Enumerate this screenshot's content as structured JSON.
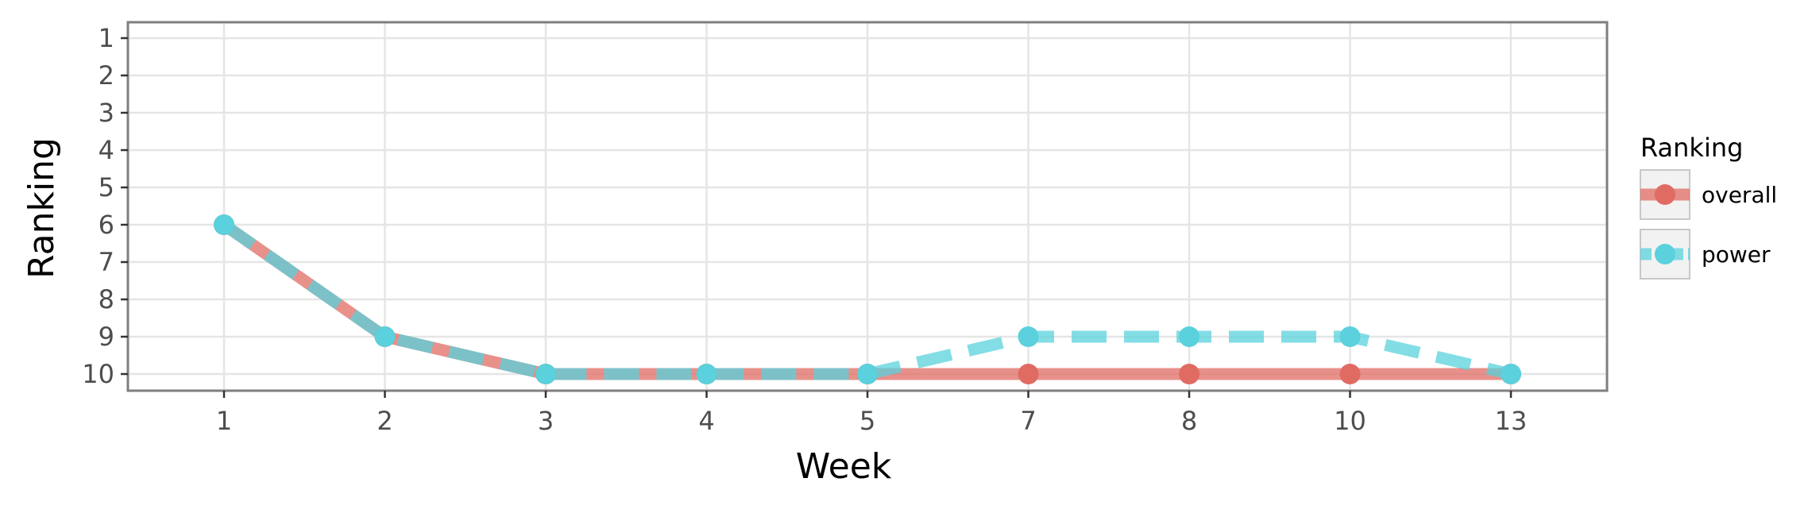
{
  "chart_data": {
    "type": "line",
    "xlabel": "Week",
    "ylabel": "Ranking",
    "categories": [
      "1",
      "2",
      "3",
      "4",
      "5",
      "7",
      "8",
      "10",
      "13"
    ],
    "y_ticks": [
      "1",
      "2",
      "3",
      "4",
      "5",
      "6",
      "7",
      "8",
      "9",
      "10"
    ],
    "ylim": [
      1,
      10
    ],
    "y_reversed": true,
    "grid": true,
    "legend": {
      "title": "Ranking",
      "placement": "right"
    },
    "series": [
      {
        "name": "overall",
        "values": [
          6,
          9,
          10,
          10,
          10,
          10,
          10,
          10,
          10
        ],
        "color": "#e06b63",
        "line": "solid"
      },
      {
        "name": "power",
        "values": [
          6,
          9,
          10,
          10,
          10,
          9,
          9,
          9,
          10
        ],
        "color": "#5ad1dc",
        "line": "dashed"
      }
    ]
  }
}
